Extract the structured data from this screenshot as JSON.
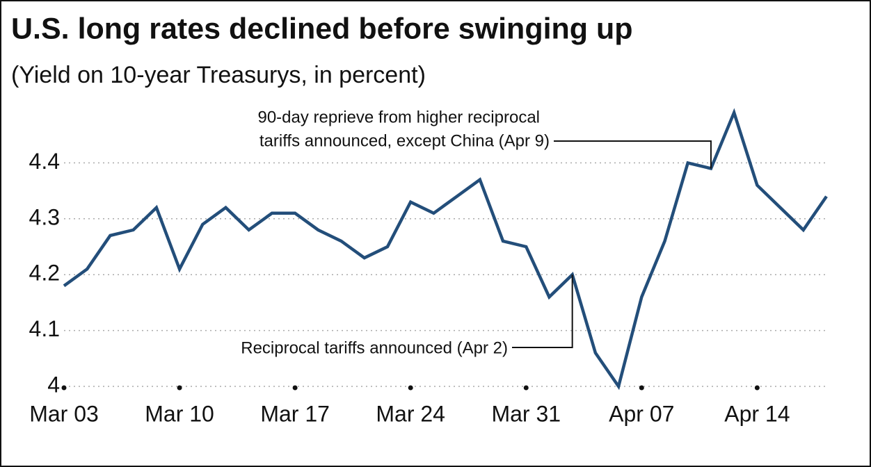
{
  "chart_data": {
    "type": "line",
    "title": "U.S. long rates declined before swinging up",
    "subtitle": "(Yield on 10-year Treasurys, in percent)",
    "categories": [
      "Mar 03",
      null,
      null,
      null,
      null,
      "Mar 10",
      null,
      null,
      null,
      null,
      "Mar 17",
      null,
      null,
      null,
      null,
      "Mar 24",
      null,
      null,
      null,
      null,
      "Mar 31",
      null,
      null,
      null,
      null,
      "Apr 07",
      null,
      null,
      null,
      null,
      "Apr 14",
      null,
      null,
      null
    ],
    "series": [
      {
        "name": "10-year Treasury yield",
        "color": "#234e7a",
        "values": [
          4.18,
          4.21,
          4.27,
          4.28,
          4.32,
          4.21,
          4.29,
          4.32,
          4.28,
          4.31,
          4.31,
          4.28,
          4.26,
          4.23,
          4.25,
          4.33,
          4.31,
          4.34,
          4.37,
          4.26,
          4.25,
          4.16,
          4.2,
          4.06,
          4.0,
          4.16,
          4.26,
          4.4,
          4.39,
          4.49,
          4.36,
          4.32,
          4.28,
          4.34
        ]
      }
    ],
    "ylim": [
      4,
      4.5
    ],
    "yticks": [
      4,
      4.1,
      4.2,
      4.3,
      4.4
    ],
    "grid": true,
    "annotations": [
      {
        "lines": [
          "90-day reprieve from higher reciprocal",
          "tariffs announced, except China (Apr 9)"
        ]
      },
      {
        "lines": [
          "Reciprocal tariffs announced (Apr 2)"
        ]
      }
    ]
  }
}
